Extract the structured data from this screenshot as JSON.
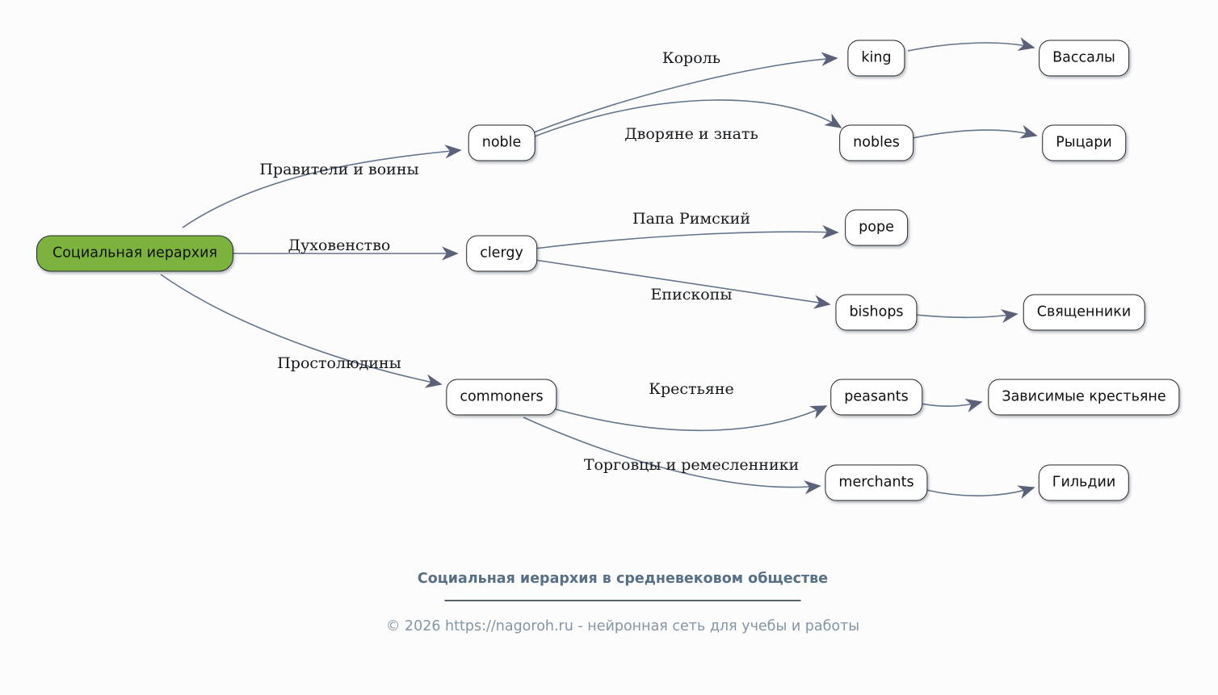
{
  "colors": {
    "background": "#fcfcfd",
    "root_node_fill": "#7cb33e",
    "node_fill": "#ffffff",
    "node_border": "#22272e",
    "edge": "#64748b",
    "arrowhead": "#5a6178",
    "footer_title": "#587086",
    "footer_copyright": "#8496a6",
    "divider": "#57616d"
  },
  "diagram": {
    "type": "mindmap",
    "nodes": [
      {
        "id": "root",
        "label": "Социальная иерархия",
        "type": "root"
      },
      {
        "id": "noble",
        "label": "noble",
        "type": "branch"
      },
      {
        "id": "clergy",
        "label": "clergy",
        "type": "branch"
      },
      {
        "id": "commoners",
        "label": "commoners",
        "type": "branch"
      },
      {
        "id": "king",
        "label": "king",
        "type": "branch"
      },
      {
        "id": "nobles",
        "label": "nobles",
        "type": "branch"
      },
      {
        "id": "pope",
        "label": "pope",
        "type": "branch"
      },
      {
        "id": "bishops",
        "label": "bishops",
        "type": "branch"
      },
      {
        "id": "peasants",
        "label": "peasants",
        "type": "branch"
      },
      {
        "id": "merchants",
        "label": "merchants",
        "type": "branch"
      },
      {
        "id": "vassals",
        "label": "Вассалы",
        "type": "leaf"
      },
      {
        "id": "knights",
        "label": "Рыцари",
        "type": "leaf"
      },
      {
        "id": "priests",
        "label": "Священники",
        "type": "leaf"
      },
      {
        "id": "dependent-peasants",
        "label": "Зависимые крестьяне",
        "type": "leaf"
      },
      {
        "id": "guilds",
        "label": "Гильдии",
        "type": "leaf"
      }
    ],
    "edges": [
      {
        "from": "root",
        "to": "noble",
        "label": "Правители и воины"
      },
      {
        "from": "root",
        "to": "clergy",
        "label": "Духовенство"
      },
      {
        "from": "root",
        "to": "commoners",
        "label": "Простолюдины"
      },
      {
        "from": "noble",
        "to": "king",
        "label": "Король"
      },
      {
        "from": "noble",
        "to": "nobles",
        "label": "Дворяне и знать"
      },
      {
        "from": "clergy",
        "to": "pope",
        "label": "Папа Римский"
      },
      {
        "from": "clergy",
        "to": "bishops",
        "label": "Епископы"
      },
      {
        "from": "commoners",
        "to": "peasants",
        "label": "Крестьяне"
      },
      {
        "from": "commoners",
        "to": "merchants",
        "label": "Торговцы и ремесленники"
      },
      {
        "from": "king",
        "to": "vassals",
        "label": ""
      },
      {
        "from": "nobles",
        "to": "knights",
        "label": ""
      },
      {
        "from": "bishops",
        "to": "priests",
        "label": ""
      },
      {
        "from": "peasants",
        "to": "dependent-peasants",
        "label": ""
      },
      {
        "from": "merchants",
        "to": "guilds",
        "label": ""
      }
    ]
  },
  "footer": {
    "title": "Социальная иерархия в средневековом обществе",
    "copyright": "© 2026 https://nagoroh.ru - нейронная сеть для учебы и работы"
  }
}
